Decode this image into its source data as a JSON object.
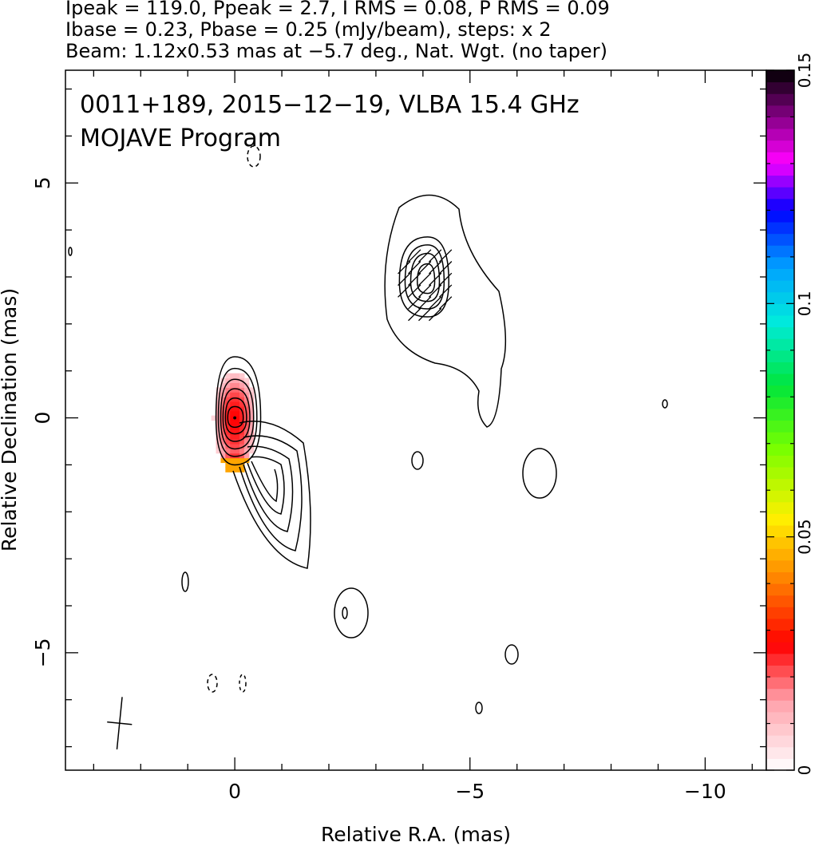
{
  "header": {
    "line1": "Ipeak = 119.0, Ppeak = 2.7, I RMS = 0.08, P RMS = 0.09",
    "line2": "Ibase = 0.23, Pbase = 0.25 (mJy/beam), steps: x 2",
    "line3": "Beam: 1.12x0.53 mas at −5.7 deg., Nat. Wgt. (no taper)"
  },
  "chart_data": {
    "type": "contour map with colour overlay",
    "title": "0011+189, 2015−12−19, VLBA 15.4 GHz",
    "subtitle": "MOJAVE Program",
    "xlabel": "Relative R.A. (mas)",
    "ylabel": "Relative Declination (mas)",
    "xlim": [
      3.6,
      -11.3
    ],
    "ylim": [
      -7.5,
      7.4
    ],
    "x_ticks": [
      {
        "value": 0,
        "label": "0"
      },
      {
        "value": -5,
        "label": "−5"
      },
      {
        "value": -10,
        "label": "−10"
      }
    ],
    "y_ticks": [
      {
        "value": 5,
        "label": "5"
      },
      {
        "value": 0,
        "label": "0"
      },
      {
        "value": -5,
        "label": "−5"
      }
    ],
    "colorbar": {
      "min": 0,
      "max": 0.15,
      "ticks": [
        {
          "value": 0,
          "label": "0"
        },
        {
          "value": 0.05,
          "label": "0.05"
        },
        {
          "value": 0.1,
          "label": "0.1"
        },
        {
          "value": 0.15,
          "label": "0.15"
        }
      ]
    },
    "beam": {
      "major_mas": 1.12,
      "minor_mas": 0.53,
      "pa_deg": -5.7,
      "center": [
        2.45,
        -6.5
      ]
    },
    "core": {
      "ra": 0,
      "dec": 0,
      "contours": [
        [
          0.4,
          1.3,
          0.55,
          1.0
        ],
        [
          0.35,
          1.05,
          0.47,
          0.82
        ],
        [
          0.3,
          0.82,
          0.4,
          0.66
        ],
        [
          0.25,
          0.62,
          0.32,
          0.5
        ],
        [
          0.2,
          0.42,
          0.25,
          0.34
        ],
        [
          0.15,
          0.24,
          0.18,
          0.2
        ]
      ]
    },
    "component": {
      "ra": -4.1,
      "dec": 2.9,
      "contours": [
        [
          0.6,
          0.95,
          0.45,
          0.75
        ],
        [
          0.48,
          0.78,
          0.35,
          0.58
        ],
        [
          0.36,
          0.6,
          0.25,
          0.42
        ],
        [
          0.22,
          0.38,
          0.15,
          0.25
        ]
      ]
    },
    "polarization": {
      "ra_range": [
        0.45,
        -0.45
      ],
      "dec_range": [
        -1.2,
        1.0
      ],
      "peak_value": 0.027
    }
  }
}
